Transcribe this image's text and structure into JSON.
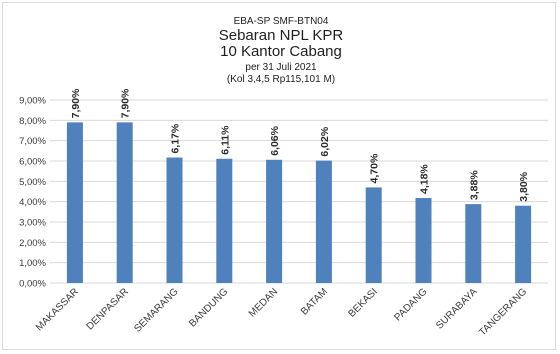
{
  "chart_data": {
    "type": "bar",
    "title_lines": [
      "EBA-SP SMF-BTN04",
      "Sebaran NPL KPR",
      "10 Kantor Cabang",
      "per 31 Juli 2021",
      "(Kol 3,4,5 Rp115,101 M)"
    ],
    "categories": [
      "MAKASSAR",
      "DENPASAR",
      "SEMARANG",
      "BANDUNG",
      "MEDAN",
      "BATAM",
      "BEKASI",
      "PADANG",
      "SURABAYA",
      "TANGERANG"
    ],
    "values": [
      7.9,
      7.9,
      6.17,
      6.11,
      6.06,
      6.02,
      4.7,
      4.18,
      3.88,
      3.8
    ],
    "data_labels": [
      "7,90%",
      "7,90%",
      "6,17%",
      "6,11%",
      "6,06%",
      "6,02%",
      "4,70%",
      "4,18%",
      "3,88%",
      "3,80%"
    ],
    "y_ticks": [
      0,
      1,
      2,
      3,
      4,
      5,
      6,
      7,
      8,
      9
    ],
    "y_tick_labels": [
      "0,00%",
      "1,00%",
      "2,00%",
      "3,00%",
      "4,00%",
      "5,00%",
      "6,00%",
      "7,00%",
      "8,00%",
      "9,00%"
    ],
    "ylim": [
      0,
      9
    ],
    "grid": true,
    "legend": "none",
    "bar_color": "#4f81bd",
    "label_rotation": "vertical"
  }
}
